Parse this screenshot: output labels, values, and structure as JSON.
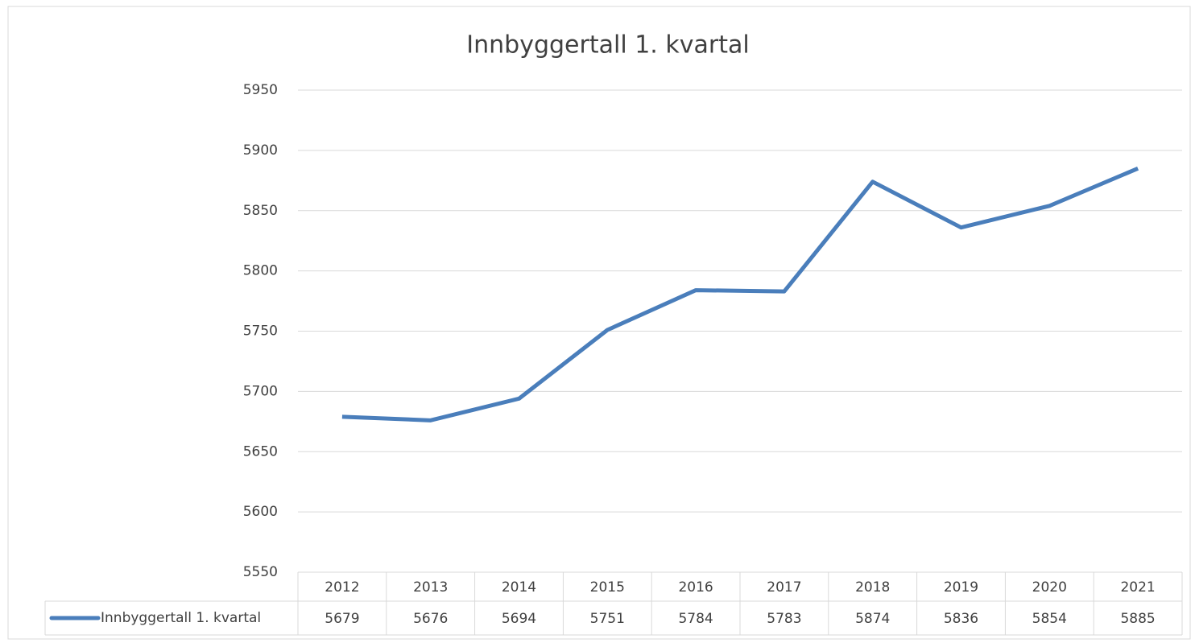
{
  "chart_data": {
    "type": "line",
    "title": "Innbyggertall 1. kvartal",
    "categories": [
      "2012",
      "2013",
      "2014",
      "2015",
      "2016",
      "2017",
      "2018",
      "2019",
      "2020",
      "2021"
    ],
    "series": [
      {
        "name": "Innbyggertall 1. kvartal",
        "color": "#4a7ebb",
        "values": [
          5679,
          5676,
          5694,
          5751,
          5784,
          5783,
          5874,
          5836,
          5854,
          5885
        ]
      }
    ],
    "ylim": [
      5550,
      5950
    ],
    "yticks": [
      5550,
      5600,
      5650,
      5700,
      5750,
      5800,
      5850,
      5900,
      5950
    ],
    "grid": true,
    "data_table": true
  }
}
